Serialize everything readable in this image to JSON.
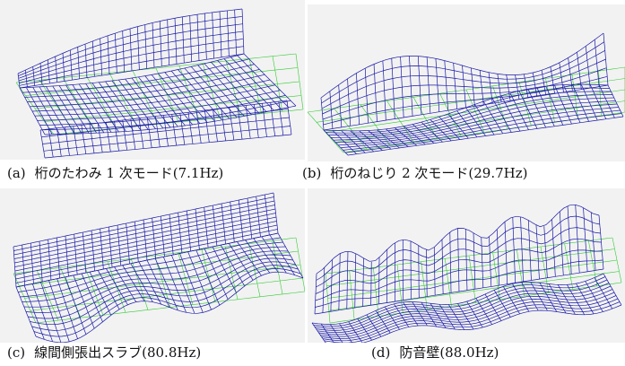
{
  "figure": {
    "panels": [
      {
        "id": "a",
        "tag": "(a)",
        "caption": "桁のたわみ 1 次モード(7.1Hz)"
      },
      {
        "id": "b",
        "tag": "(b)",
        "caption": "桁のねじり 2 次モード(29.7Hz)"
      },
      {
        "id": "c",
        "tag": "(c)",
        "caption": "線間側張出スラブ(80.8Hz)"
      },
      {
        "id": "d",
        "tag": "(d)",
        "caption": "防音壁(88.0Hz)"
      }
    ],
    "colors": {
      "deformed_mesh": "#1a1aa8",
      "undeformed_mesh": "#33cc33",
      "panel_background": "#f2f2f2"
    }
  }
}
